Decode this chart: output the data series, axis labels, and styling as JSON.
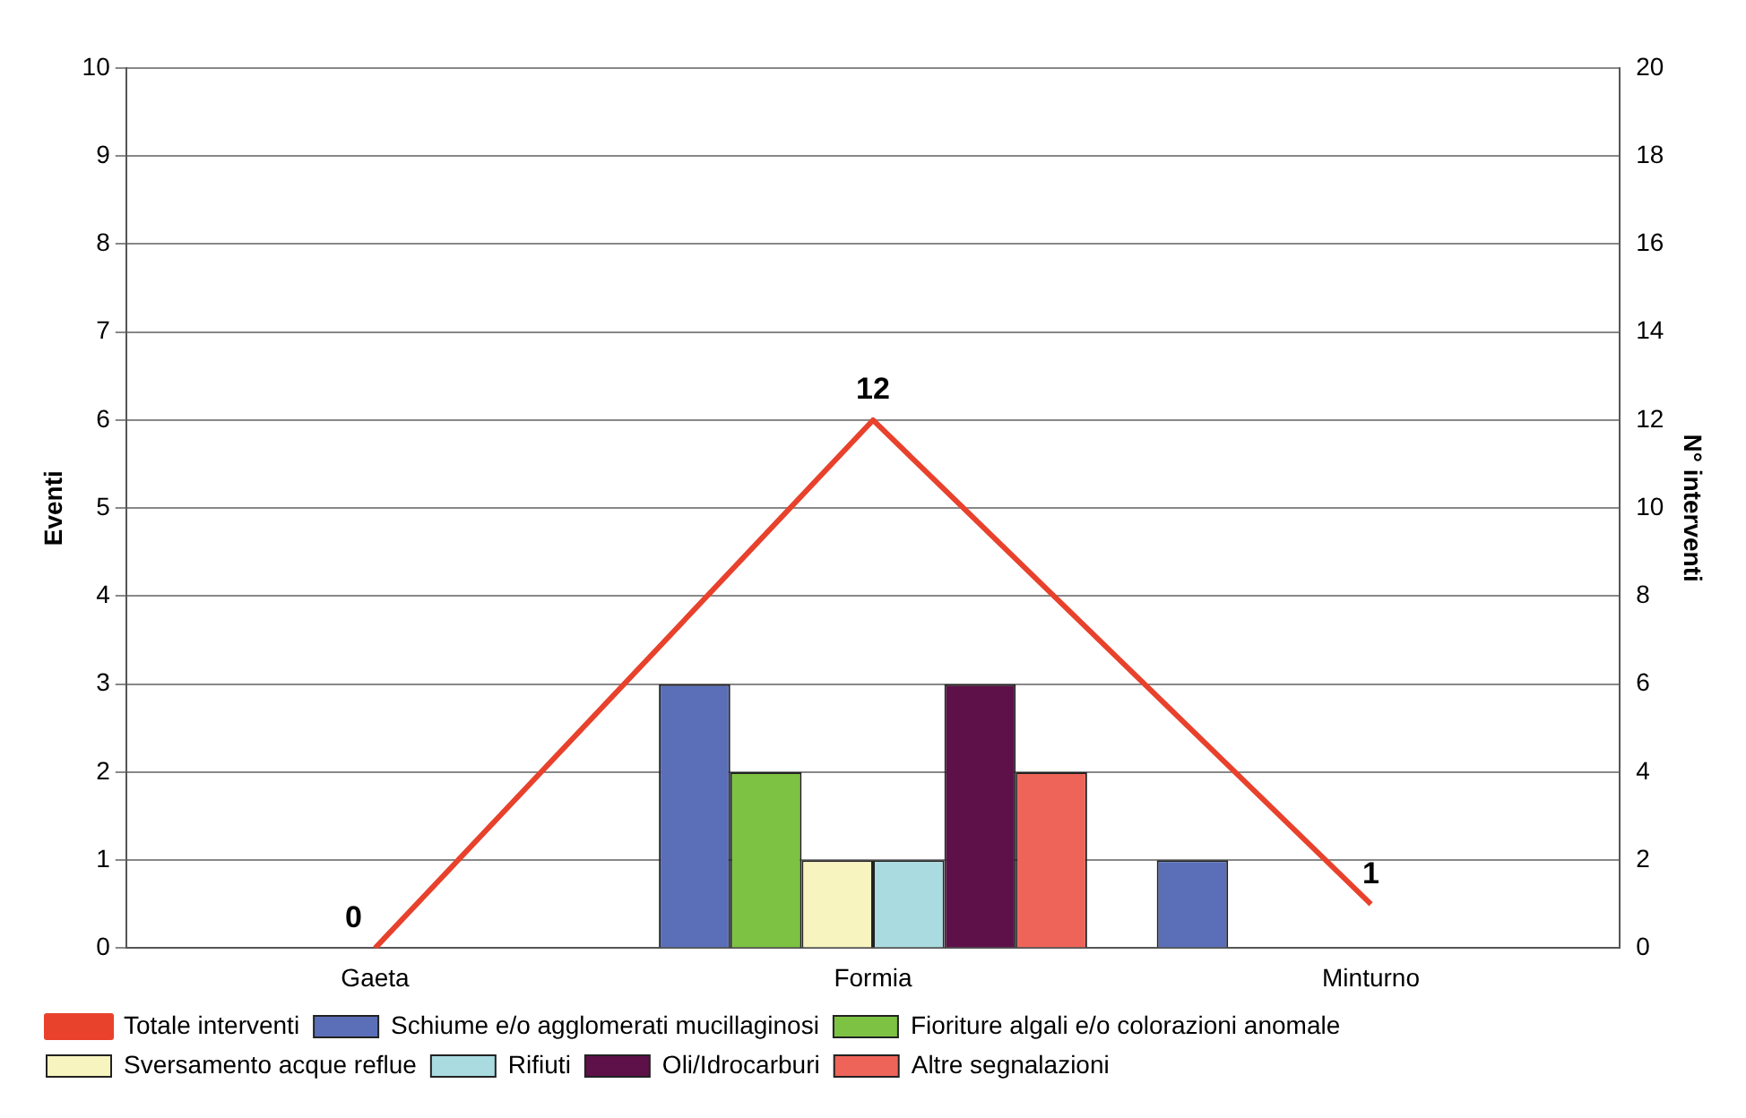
{
  "chart_data": {
    "type": "bar",
    "categories": [
      "Gaeta",
      "Formia",
      "Minturno"
    ],
    "ylabel": "Eventi",
    "y2label": "N° interventi",
    "ylim": [
      0,
      10
    ],
    "yticks": [
      0,
      1,
      2,
      3,
      4,
      5,
      6,
      7,
      8,
      9,
      10
    ],
    "y2lim": [
      0,
      20
    ],
    "y2ticks": [
      0,
      2,
      4,
      6,
      8,
      10,
      12,
      14,
      16,
      18,
      20
    ],
    "grid": "y",
    "legend": "bottom",
    "marker": "none",
    "series": [
      {
        "name": "Schiume e/o agglomerati mucillaginosi",
        "color": "#5a6fb8",
        "values": [
          0,
          3,
          1
        ]
      },
      {
        "name": "Fioriture algali e/o colorazioni anomale",
        "color": "#7dc242",
        "values": [
          0,
          2,
          0
        ]
      },
      {
        "name": "Sversamento acque reflue",
        "color": "#f7f4c0",
        "values": [
          0,
          1,
          0
        ]
      },
      {
        "name": "Rifiuti",
        "color": "#a9dbe0",
        "values": [
          0,
          1,
          0
        ]
      },
      {
        "name": "Oli/Idrocarburi",
        "color": "#5e1048",
        "values": [
          0,
          3,
          0
        ]
      },
      {
        "name": "Altre segnalazioni",
        "color": "#ef6459",
        "values": [
          0,
          2,
          0
        ]
      },
      {
        "name": "Totale interventi",
        "type": "line",
        "axis": "y2",
        "color": "#e8412c",
        "values": [
          0,
          12,
          1
        ],
        "value_labels": [
          "0",
          "12",
          "1"
        ]
      }
    ]
  }
}
